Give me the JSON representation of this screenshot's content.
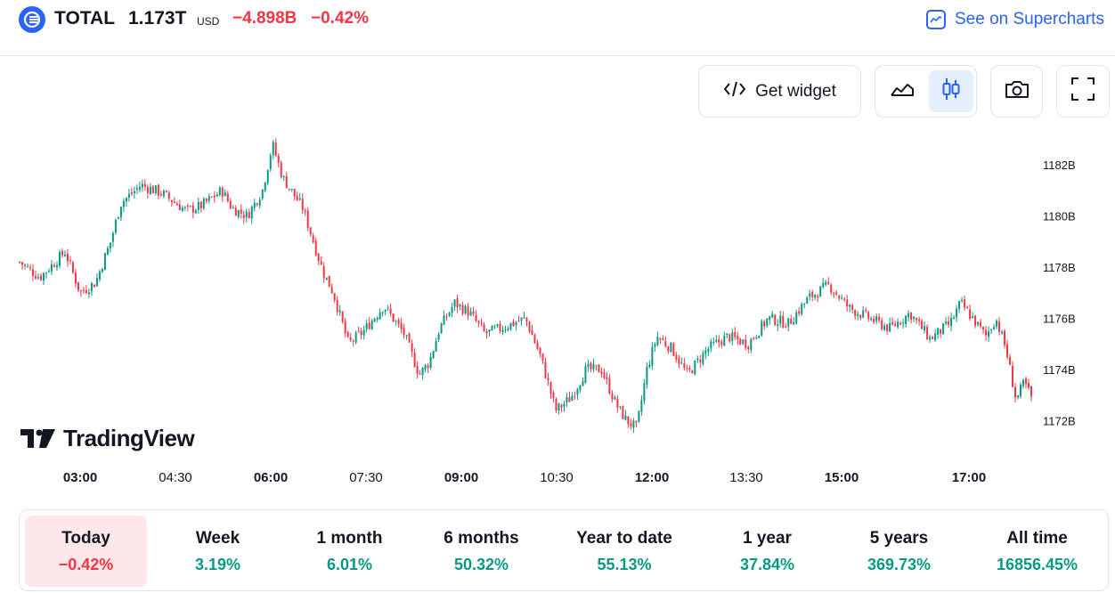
{
  "header": {
    "symbol": "TOTAL",
    "price": "1.173T",
    "currency": "USD",
    "change": "−4.898B",
    "change_percent": "−0.42%",
    "supercharts_label": "See on Supercharts"
  },
  "toolbar": {
    "get_widget_label": "Get widget",
    "chart_styles": [
      "line-chart-icon",
      "candles-icon"
    ],
    "active_style": "candles-icon"
  },
  "chart_data": {
    "type": "candlestick",
    "x_ticks": [
      {
        "label": "03:00",
        "bold": true
      },
      {
        "label": "04:30",
        "bold": false
      },
      {
        "label": "06:00",
        "bold": true
      },
      {
        "label": "07:30",
        "bold": false
      },
      {
        "label": "09:00",
        "bold": true
      },
      {
        "label": "10:30",
        "bold": false
      },
      {
        "label": "12:00",
        "bold": true
      },
      {
        "label": "13:30",
        "bold": false
      },
      {
        "label": "15:00",
        "bold": true
      },
      {
        "label": "17:00",
        "bold": true
      }
    ],
    "y_ticks": [
      "1182B",
      "1180B",
      "1178B",
      "1176B",
      "1174B",
      "1172B"
    ],
    "y_range": [
      1170.8,
      1183.2
    ],
    "price_path": [
      [
        0,
        1178.2
      ],
      [
        0.02,
        1177.6
      ],
      [
        0.045,
        1178.6
      ],
      [
        0.06,
        1177.0
      ],
      [
        0.075,
        1177.4
      ],
      [
        0.09,
        1179.0
      ],
      [
        0.1,
        1180.5
      ],
      [
        0.12,
        1181.2
      ],
      [
        0.14,
        1180.9
      ],
      [
        0.165,
        1180.2
      ],
      [
        0.18,
        1180.4
      ],
      [
        0.2,
        1181.0
      ],
      [
        0.21,
        1180.3
      ],
      [
        0.225,
        1180.0
      ],
      [
        0.24,
        1181.0
      ],
      [
        0.25,
        1182.8
      ],
      [
        0.26,
        1181.5
      ],
      [
        0.28,
        1180.3
      ],
      [
        0.3,
        1177.8
      ],
      [
        0.31,
        1177.0
      ],
      [
        0.325,
        1175.0
      ],
      [
        0.34,
        1175.5
      ],
      [
        0.36,
        1176.5
      ],
      [
        0.38,
        1175.4
      ],
      [
        0.395,
        1173.8
      ],
      [
        0.405,
        1174.3
      ],
      [
        0.415,
        1175.6
      ],
      [
        0.43,
        1176.6
      ],
      [
        0.445,
        1176.2
      ],
      [
        0.46,
        1175.4
      ],
      [
        0.475,
        1175.6
      ],
      [
        0.5,
        1176.0
      ],
      [
        0.515,
        1174.5
      ],
      [
        0.53,
        1172.4
      ],
      [
        0.545,
        1172.9
      ],
      [
        0.56,
        1174.0
      ],
      [
        0.575,
        1174.0
      ],
      [
        0.59,
        1172.6
      ],
      [
        0.6,
        1172.0
      ],
      [
        0.61,
        1171.7
      ],
      [
        0.62,
        1174.0
      ],
      [
        0.63,
        1175.3
      ],
      [
        0.645,
        1174.8
      ],
      [
        0.66,
        1173.8
      ],
      [
        0.68,
        1174.8
      ],
      [
        0.7,
        1175.3
      ],
      [
        0.72,
        1175.0
      ],
      [
        0.74,
        1176.0
      ],
      [
        0.76,
        1175.8
      ],
      [
        0.78,
        1176.8
      ],
      [
        0.8,
        1177.3
      ],
      [
        0.82,
        1176.4
      ],
      [
        0.84,
        1176.0
      ],
      [
        0.86,
        1175.6
      ],
      [
        0.88,
        1176.2
      ],
      [
        0.9,
        1175.2
      ],
      [
        0.92,
        1175.8
      ],
      [
        0.93,
        1176.6
      ],
      [
        0.94,
        1176.1
      ],
      [
        0.955,
        1175.3
      ],
      [
        0.965,
        1176.0
      ],
      [
        0.975,
        1174.8
      ],
      [
        0.985,
        1172.8
      ],
      [
        0.993,
        1173.5
      ],
      [
        1.0,
        1172.9
      ]
    ]
  },
  "periods": [
    {
      "label": "Today",
      "value": "−0.42%",
      "trend": "neg"
    },
    {
      "label": "Week",
      "value": "3.19%",
      "trend": "pos"
    },
    {
      "label": "1 month",
      "value": "6.01%",
      "trend": "pos"
    },
    {
      "label": "6 months",
      "value": "50.32%",
      "trend": "pos"
    },
    {
      "label": "Year to date",
      "value": "55.13%",
      "trend": "pos"
    },
    {
      "label": "1 year",
      "value": "37.84%",
      "trend": "pos"
    },
    {
      "label": "5 years",
      "value": "369.73%",
      "trend": "pos"
    },
    {
      "label": "All time",
      "value": "16856.45%",
      "trend": "pos"
    }
  ],
  "watermark": "TradingView",
  "colors": {
    "up": "#089981",
    "down": "#f23645",
    "accent": "#2962ff",
    "active_period_bg": "#fde7e8"
  }
}
